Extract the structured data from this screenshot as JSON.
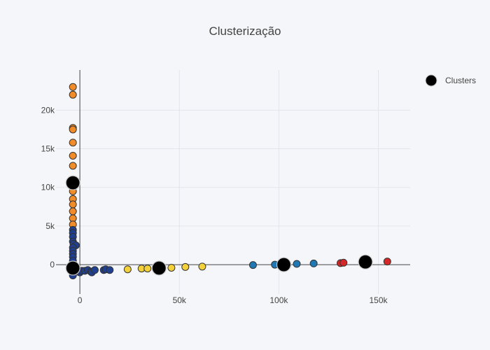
{
  "chart_data": {
    "type": "scatter",
    "title": "Clusterização",
    "xlabel": "",
    "ylabel": "",
    "xlim": [
      -12000,
      166000
    ],
    "ylim": [
      -3800,
      25200
    ],
    "x_ticks": [
      {
        "value": 0,
        "label": "0"
      },
      {
        "value": 50000,
        "label": "50k"
      },
      {
        "value": 100000,
        "label": "100k"
      },
      {
        "value": 150000,
        "label": "150k"
      }
    ],
    "y_ticks": [
      {
        "value": 0,
        "label": "0"
      },
      {
        "value": 5000,
        "label": "5k"
      },
      {
        "value": 10000,
        "label": "10k"
      },
      {
        "value": 15000,
        "label": "15k"
      },
      {
        "value": 20000,
        "label": "20k"
      }
    ],
    "grid": true,
    "legend": {
      "position": "top-right",
      "entries": [
        "Clusters"
      ]
    },
    "series": [
      {
        "color": "#f28c28",
        "points": [
          [
            -3500,
            23000
          ],
          [
            -3500,
            22000
          ],
          [
            -3500,
            17700
          ],
          [
            -3500,
            17500
          ],
          [
            -3500,
            15800
          ],
          [
            -3500,
            14100
          ],
          [
            -3500,
            12800
          ],
          [
            -3500,
            10600
          ],
          [
            -3500,
            10000
          ],
          [
            -3500,
            9500
          ],
          [
            -3500,
            8500
          ],
          [
            -3500,
            7800
          ],
          [
            -3500,
            6900
          ],
          [
            -3500,
            6000
          ],
          [
            -3500,
            5200
          ]
        ]
      },
      {
        "color": "#1f3f8f",
        "points": [
          [
            -3500,
            4500
          ],
          [
            -3500,
            4100
          ],
          [
            -3500,
            3600
          ],
          [
            -3500,
            3000
          ],
          [
            -3200,
            2700
          ],
          [
            -2000,
            2500
          ],
          [
            -3500,
            2200
          ],
          [
            -3500,
            1800
          ],
          [
            -3500,
            1400
          ],
          [
            -3500,
            1000
          ],
          [
            -3500,
            500
          ],
          [
            -3500,
            0
          ],
          [
            -3500,
            -400
          ],
          [
            -3500,
            -900
          ],
          [
            -3500,
            -1400
          ],
          [
            -2500,
            -700
          ],
          [
            -1000,
            -900
          ],
          [
            0,
            -1000
          ],
          [
            1000,
            -800
          ],
          [
            2500,
            -800
          ],
          [
            4000,
            -700
          ],
          [
            5500,
            -900
          ],
          [
            6000,
            -1000
          ],
          [
            7500,
            -700
          ],
          [
            12000,
            -700
          ],
          [
            13000,
            -600
          ],
          [
            15000,
            -700
          ]
        ]
      },
      {
        "color": "#f2d13b",
        "points": [
          [
            24000,
            -600
          ],
          [
            31000,
            -500
          ],
          [
            34000,
            -500
          ],
          [
            46000,
            -400
          ],
          [
            53000,
            -300
          ],
          [
            61500,
            -250
          ]
        ]
      },
      {
        "color": "#1f77b4",
        "points": [
          [
            87000,
            -50
          ],
          [
            98000,
            0
          ],
          [
            109000,
            100
          ],
          [
            117500,
            150
          ]
        ]
      },
      {
        "color": "#d62728",
        "points": [
          [
            131000,
            200
          ],
          [
            132500,
            250
          ],
          [
            154500,
            400
          ]
        ]
      },
      {
        "name": "Clusters",
        "color": "#000000",
        "points": [
          [
            -3500,
            10600
          ],
          [
            -3500,
            -450
          ],
          [
            39800,
            -450
          ],
          [
            102500,
            0
          ],
          [
            143500,
            350
          ]
        ]
      }
    ]
  }
}
